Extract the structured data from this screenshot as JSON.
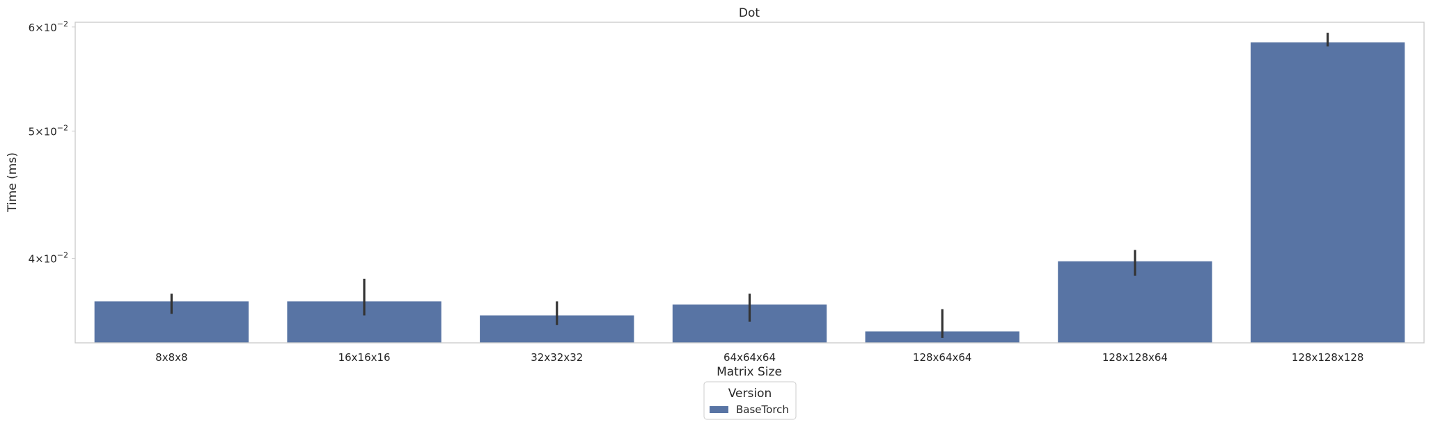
{
  "chart_data": {
    "type": "bar",
    "title": "Dot",
    "xlabel": "Matrix Size",
    "ylabel": "Time (ms)",
    "yscale": "log",
    "ylim": [
      0.0345,
      0.0605
    ],
    "yticks": [
      {
        "value": 0.04,
        "base": "4",
        "exp": "−2"
      },
      {
        "value": 0.05,
        "base": "5",
        "exp": "−2"
      },
      {
        "value": 0.06,
        "base": "6",
        "exp": "−2"
      }
    ],
    "grid": false,
    "categories": [
      "8x8x8",
      "16x16x16",
      "32x32x32",
      "64x64x64",
      "128x64x64",
      "128x128x64",
      "128x128x128"
    ],
    "series": [
      {
        "name": "BaseTorch",
        "color": "#5874a4",
        "values": [
          0.0371,
          0.0371,
          0.0362,
          0.0369,
          0.0352,
          0.0398,
          0.0584
        ],
        "error_low": [
          0.0363,
          0.0362,
          0.0356,
          0.0358,
          0.0348,
          0.0388,
          0.058
        ],
        "error_high": [
          0.0376,
          0.0386,
          0.0371,
          0.0376,
          0.0366,
          0.0406,
          0.0594
        ]
      }
    ],
    "legend": {
      "title": "Version",
      "placement": "bottom-center"
    }
  }
}
